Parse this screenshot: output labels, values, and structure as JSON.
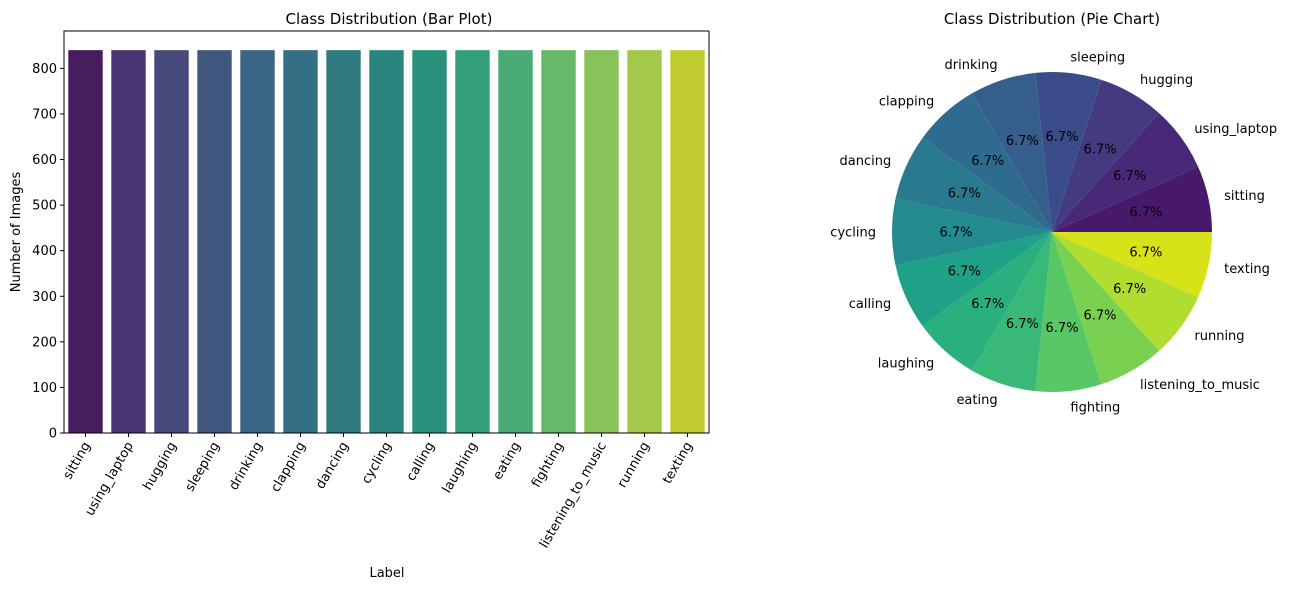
{
  "chart_data": [
    {
      "type": "bar",
      "title": "Class Distribution (Bar Plot)",
      "xlabel": "Label",
      "ylabel": "Number of Images",
      "categories": [
        "sitting",
        "using_laptop",
        "hugging",
        "sleeping",
        "drinking",
        "clapping",
        "dancing",
        "cycling",
        "calling",
        "laughing",
        "eating",
        "fighting",
        "listening_to_music",
        "running",
        "texting"
      ],
      "values": [
        840,
        840,
        840,
        840,
        840,
        840,
        840,
        840,
        840,
        840,
        840,
        840,
        840,
        840,
        840
      ],
      "ylim": [
        0,
        882
      ],
      "yticks": [
        0,
        100,
        200,
        300,
        400,
        500,
        600,
        700,
        800
      ],
      "colors": [
        "#481d5e",
        "#4a3574",
        "#47487c",
        "#40577f",
        "#3a6584",
        "#347085",
        "#2f7981",
        "#2b857f",
        "#2a917d",
        "#34a079",
        "#4aab74",
        "#68b86a",
        "#88c25a",
        "#a3c84a",
        "#c0cb30"
      ],
      "grid": false,
      "legend": "none"
    },
    {
      "type": "pie",
      "title": "Class Distribution (Pie Chart)",
      "labels": [
        "sitting",
        "using_laptop",
        "hugging",
        "sleeping",
        "drinking",
        "clapping",
        "dancing",
        "cycling",
        "calling",
        "laughing",
        "eating",
        "fighting",
        "listening_to_music",
        "running",
        "texting"
      ],
      "values": [
        840,
        840,
        840,
        840,
        840,
        840,
        840,
        840,
        840,
        840,
        840,
        840,
        840,
        840,
        840
      ],
      "pct_labels": [
        "6.7%",
        "6.7%",
        "6.7%",
        "6.7%",
        "6.7%",
        "6.7%",
        "6.7%",
        "6.7%",
        "6.7%",
        "6.7%",
        "6.7%",
        "6.7%",
        "6.7%",
        "6.7%",
        "6.7%"
      ],
      "colors": [
        "#48196b",
        "#482878",
        "#433a80",
        "#3b4c8a",
        "#355e8d",
        "#2f6b8e",
        "#297a8e",
        "#238a8d",
        "#1fa187",
        "#2aaf7f",
        "#38b977",
        "#58c765",
        "#7ad151",
        "#b0dd2f",
        "#d8e219"
      ],
      "start_angle": 0,
      "direction": "counterclockwise"
    }
  ]
}
